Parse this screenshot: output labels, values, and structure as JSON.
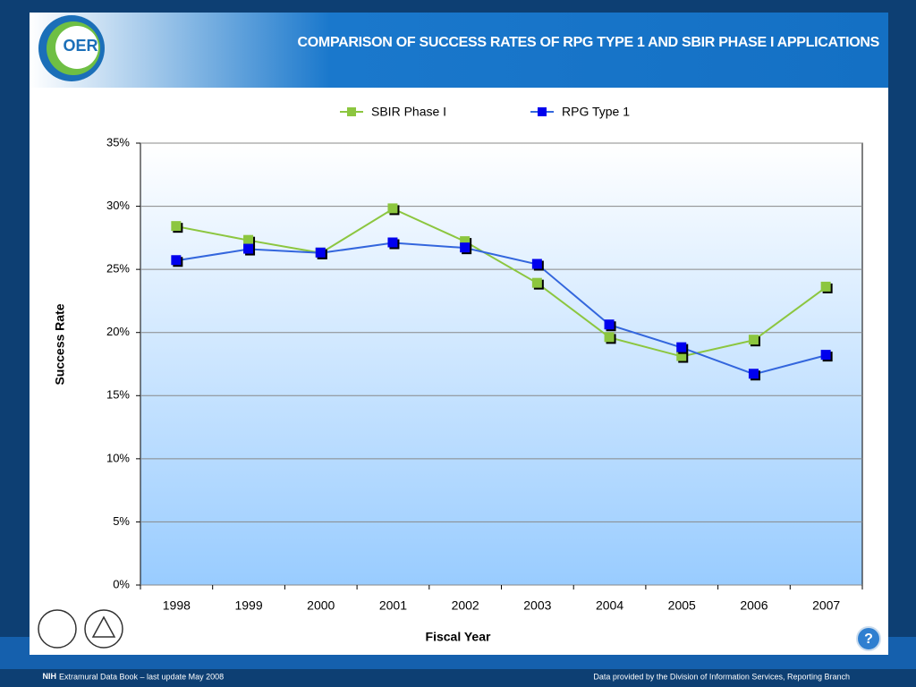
{
  "logo": "OER",
  "chart_data": {
    "type": "line",
    "title": "COMPARISON OF SUCCESS RATES OF RPG TYPE 1 AND SBIR PHASE I APPLICATIONS",
    "x_label": "Fiscal Year",
    "y_label": "Success Rate",
    "categories": [
      "1998",
      "1999",
      "2000",
      "2001",
      "2002",
      "2003",
      "2004",
      "2005",
      "2006",
      "2007"
    ],
    "series": [
      {
        "name": "SBIR Phase I",
        "color": "#8cc63f",
        "values": [
          28.4,
          27.3,
          26.3,
          29.8,
          27.2,
          23.9,
          19.6,
          18.1,
          19.4,
          23.6
        ]
      },
      {
        "name": "RPG Type 1",
        "color": "#3366dd",
        "marker_color": "#0000ee",
        "values": [
          25.7,
          26.6,
          26.3,
          27.1,
          26.7,
          25.4,
          20.6,
          18.8,
          16.7,
          18.2
        ]
      }
    ],
    "ylim": [
      0,
      35
    ],
    "yticks": [
      {
        "value": 0,
        "label": "0%"
      },
      {
        "value": 5,
        "label": "5%"
      },
      {
        "value": 10,
        "label": "10%"
      },
      {
        "value": 15,
        "label": "15%"
      },
      {
        "value": 20,
        "label": "20%"
      },
      {
        "value": 25,
        "label": "25%"
      },
      {
        "value": 30,
        "label": "30%"
      },
      {
        "value": 35,
        "label": "35%"
      }
    ],
    "grid": true,
    "legend": "top"
  },
  "footer": {
    "left_bold": "NIH",
    "left": "Extramural Data Book – last update May 2008",
    "right": "Data provided by the Division of Information Services, Reporting Branch"
  },
  "help": "?"
}
